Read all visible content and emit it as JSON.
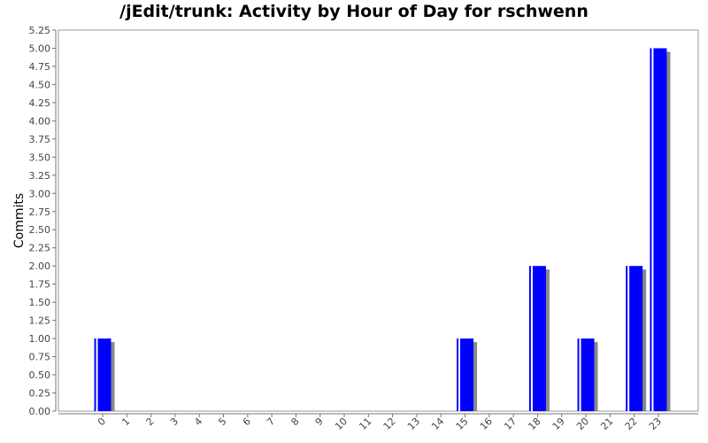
{
  "chart_data": {
    "type": "bar",
    "title": "/jEdit/trunk: Activity by Hour of Day for rschwenn",
    "xlabel": "",
    "ylabel": "Commits",
    "categories": [
      "0",
      "1",
      "2",
      "3",
      "4",
      "5",
      "6",
      "7",
      "8",
      "9",
      "10",
      "11",
      "12",
      "13",
      "14",
      "15",
      "16",
      "17",
      "18",
      "19",
      "20",
      "21",
      "22",
      "23"
    ],
    "values": [
      1,
      0,
      0,
      0,
      0,
      0,
      0,
      0,
      0,
      0,
      0,
      0,
      0,
      0,
      0,
      1,
      0,
      0,
      2,
      0,
      1,
      0,
      2,
      5
    ],
    "ylim": [
      0,
      5.25
    ],
    "y_ticks": [
      "0.00",
      "0.25",
      "0.50",
      "0.75",
      "1.00",
      "1.25",
      "1.50",
      "1.75",
      "2.00",
      "2.25",
      "2.50",
      "2.75",
      "3.00",
      "3.25",
      "3.50",
      "3.75",
      "4.00",
      "4.25",
      "4.50",
      "4.75",
      "5.00",
      "5.25"
    ],
    "grid": false,
    "bar_color": "#0000ff",
    "shadow_color": "#888888"
  }
}
